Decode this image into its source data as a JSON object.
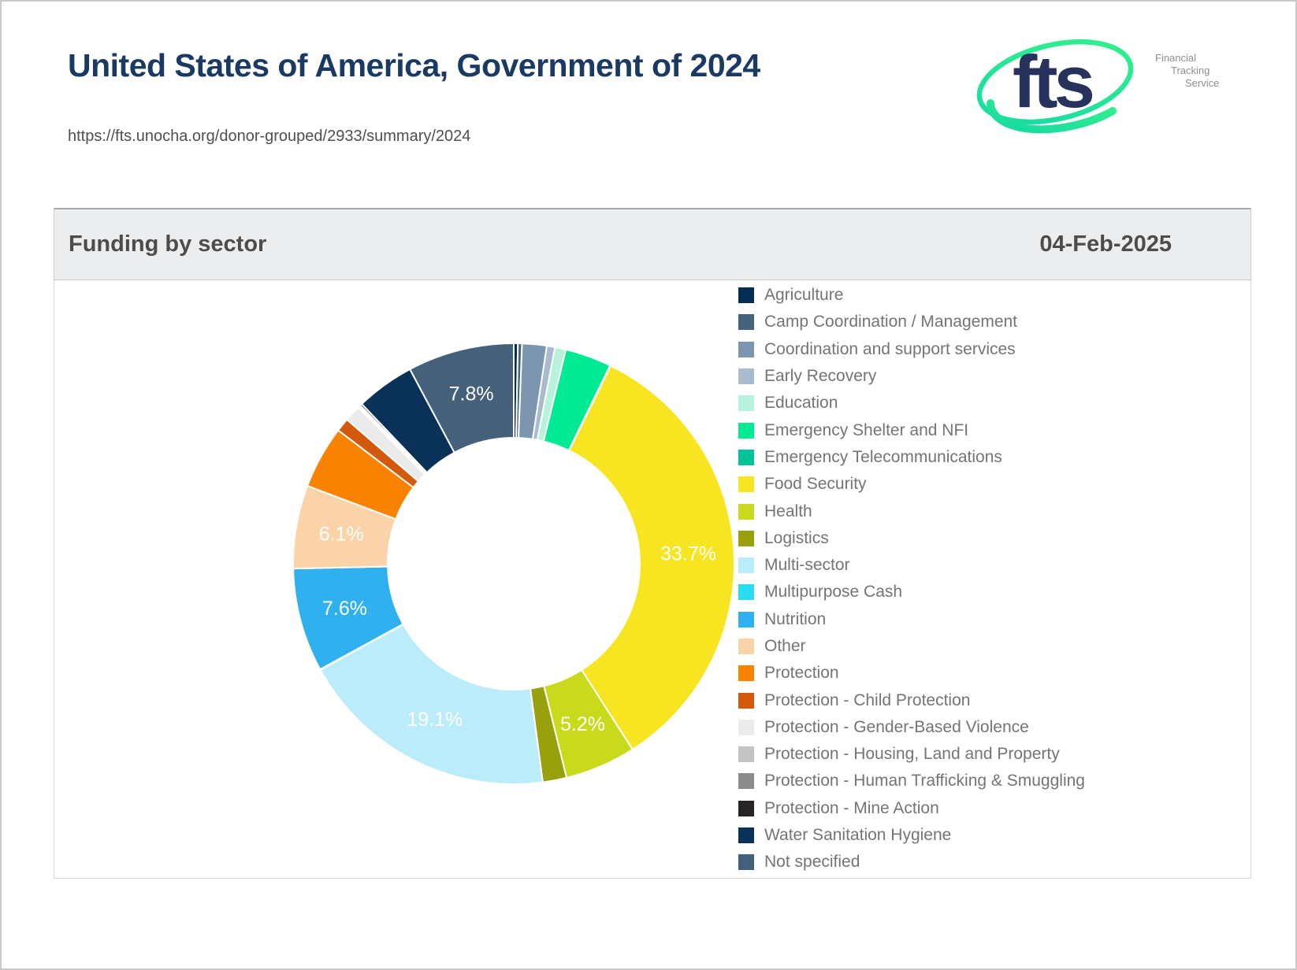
{
  "page": {
    "title": "United States of America, Government of 2024",
    "url": "https://fts.unocha.org/donor-grouped/2933/summary/2024",
    "logo": {
      "text": "fts",
      "subtitle_lines": [
        "Financial",
        "Tracking",
        "Service"
      ]
    }
  },
  "panel": {
    "title": "Funding by sector",
    "date": "04-Feb-2025"
  },
  "colors": {
    "title_navy": "#1a3a64",
    "logo_green": "#2be28f",
    "panel_header_bg": "#ecedef",
    "panel_header_text": "#4c4c4c",
    "legend_text": "#747474",
    "slice_separator": "#ffffff"
  },
  "chart_data": {
    "type": "pie",
    "title": "Funding by sector",
    "donut": true,
    "start_angle_deg": 0,
    "outer_radius": 280,
    "inner_radius": 160,
    "label_radius": 222,
    "labels_shown_for_min_pct": 5,
    "label_format": "percent_one_decimal",
    "legend_position": "right",
    "labeled_values_pct": {
      "Food Security": 33.7,
      "Multi-sector": 19.1,
      "Not specified": 7.8,
      "Nutrition": 7.6,
      "Other": 6.1,
      "Health": 5.2
    },
    "slices": [
      {
        "label": "Agriculture",
        "color": "#082d55",
        "value_pct": 0.3
      },
      {
        "label": "Camp Coordination / Management",
        "color": "#45637d",
        "value_pct": 0.3
      },
      {
        "label": "Coordination and support services",
        "color": "#7c96af",
        "value_pct": 1.8
      },
      {
        "label": "Early Recovery",
        "color": "#a9bcce",
        "value_pct": 0.6
      },
      {
        "label": "Education",
        "color": "#b7f2db",
        "value_pct": 0.8
      },
      {
        "label": "Emergency Shelter and NFI",
        "color": "#00e993",
        "value_pct": 3.4
      },
      {
        "label": "Emergency Telecommunications",
        "color": "#00c39a",
        "value_pct": 0.05
      },
      {
        "label": "Food Security",
        "color": "#f6e520",
        "value_pct": 33.7
      },
      {
        "label": "Health",
        "color": "#c9da1d",
        "value_pct": 5.2
      },
      {
        "label": "Logistics",
        "color": "#98a00c",
        "value_pct": 1.75
      },
      {
        "label": "Multi-sector",
        "color": "#baecf9",
        "value_pct": 19.1
      },
      {
        "label": "Multipurpose Cash",
        "color": "#2adcf1",
        "value_pct": 0.05
      },
      {
        "label": "Nutrition",
        "color": "#2fb1f0",
        "value_pct": 7.6
      },
      {
        "label": "Other",
        "color": "#fbd3a9",
        "value_pct": 6.1
      },
      {
        "label": "Protection",
        "color": "#f98200",
        "value_pct": 4.6
      },
      {
        "label": "Protection - Child Protection",
        "color": "#d3590d",
        "value_pct": 1.0
      },
      {
        "label": "Protection - Gender-Based Violence",
        "color": "#ebebeb",
        "value_pct": 1.2
      },
      {
        "label": "Protection - Housing, Land and Property",
        "color": "#c4c4c4",
        "value_pct": 0.1
      },
      {
        "label": "Protection - Human Trafficking & Smuggling",
        "color": "#8b8b8b",
        "value_pct": 0.1
      },
      {
        "label": "Protection - Mine Action",
        "color": "#2a2525",
        "value_pct": 0.15
      },
      {
        "label": "Water Sanitation Hygiene",
        "color": "#0a3158",
        "value_pct": 4.3
      },
      {
        "label": "Not specified",
        "color": "#44607b",
        "value_pct": 7.8
      }
    ]
  }
}
